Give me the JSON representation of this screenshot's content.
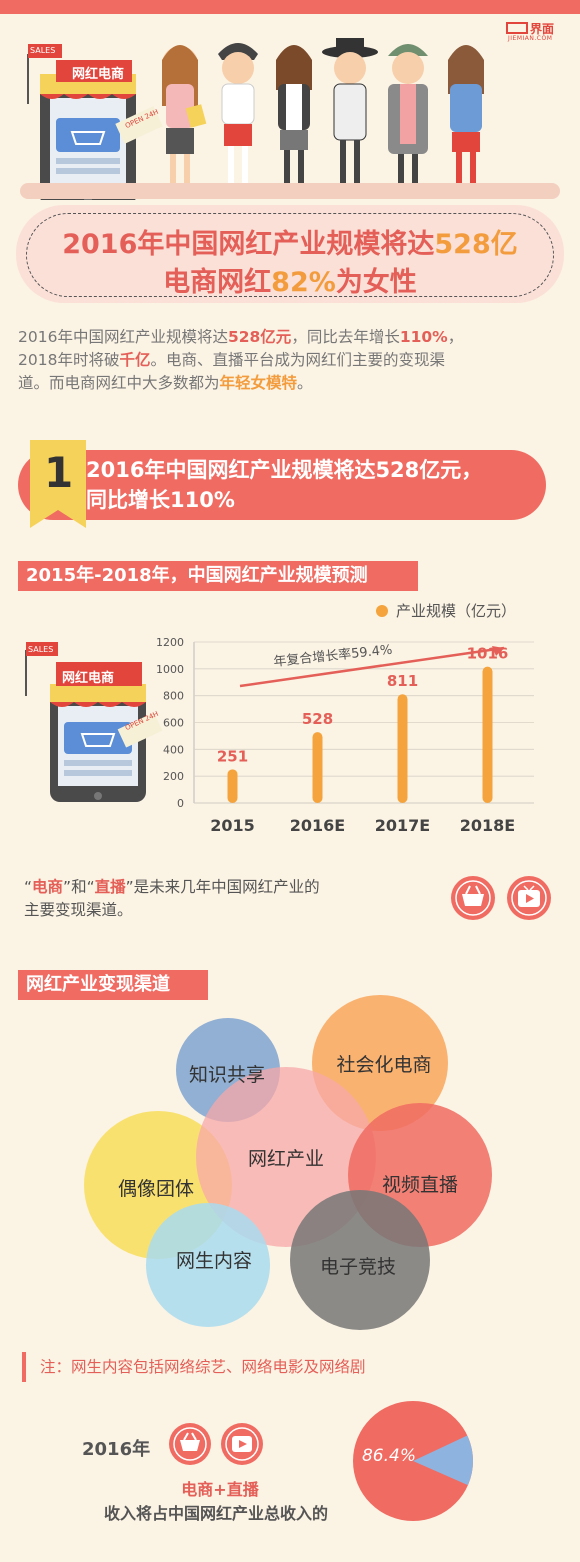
{
  "brand": {
    "name_cn": "界面",
    "name_en": "JIEMIAN.COM"
  },
  "shop": {
    "sales": "SALES",
    "title": "网红电商",
    "open": "OPEN 24H"
  },
  "headline": {
    "line1_pre": "2016年中国网红产业规模将达",
    "line1_num": "528亿",
    "line2_pre": "电商网红",
    "line2_num": "82%",
    "line2_post": "为女性"
  },
  "intro": {
    "p1": "2016年中国网红产业规模将达",
    "p1_num": "528亿元",
    "p1_mid": "，同比去年增长",
    "p1_pct": "110%",
    "p1_end": "，",
    "p2": "2018年时将破",
    "p2_num": "千亿",
    "p2_end": "。电商、直播平台成为网红们主要的变现渠",
    "p3": "道。而电商网红中大多数都为",
    "p3_em": "年轻女模特",
    "p3_end": "。"
  },
  "section1": {
    "number": "1",
    "line1": "2016年中国网红产业规模将达528亿元，",
    "line2": "同比增长110%"
  },
  "forecast": {
    "tag": "2015年-2018年，中国网红产业规模预测"
  },
  "chart_data": {
    "type": "bar",
    "categories": [
      "2015",
      "2016E",
      "2017E",
      "2018E"
    ],
    "series": [
      {
        "name": "产业规模（亿元）",
        "values": [
          251,
          528,
          811,
          1016
        ]
      }
    ],
    "ylim": [
      0,
      1200
    ],
    "yticks": [
      "0",
      "200",
      "400",
      "600",
      "800",
      "1000",
      "1200"
    ],
    "annotation": "年复合增长率59.4%",
    "legend": "top-right",
    "colors": {
      "bar": "#f5a33c",
      "label": "#e45f57"
    }
  },
  "channels": {
    "q_open1": "“",
    "word1": "电商",
    "q_close1": "”",
    "mid": "和",
    "q_open2": "“",
    "word2": "直播",
    "q_close2": "”",
    "line1_end": "是未来几年中国网红产业的",
    "line2": "主要变现渠道。"
  },
  "monetize": {
    "tag": "网红产业变现渠道",
    "center": "网红产业",
    "items": [
      "知识共享",
      "社会化电商",
      "视频直播",
      "电子竞技",
      "网生内容",
      "偶像团体"
    ]
  },
  "note": "注：网生内容包括网络综艺、网络电影及网络剧",
  "footer": {
    "year": "2016年",
    "line1": "电商+直播",
    "line2": "收入将占中国网红产业总收入的",
    "pie_pct": "86.4%",
    "pie_value": 86.4
  }
}
